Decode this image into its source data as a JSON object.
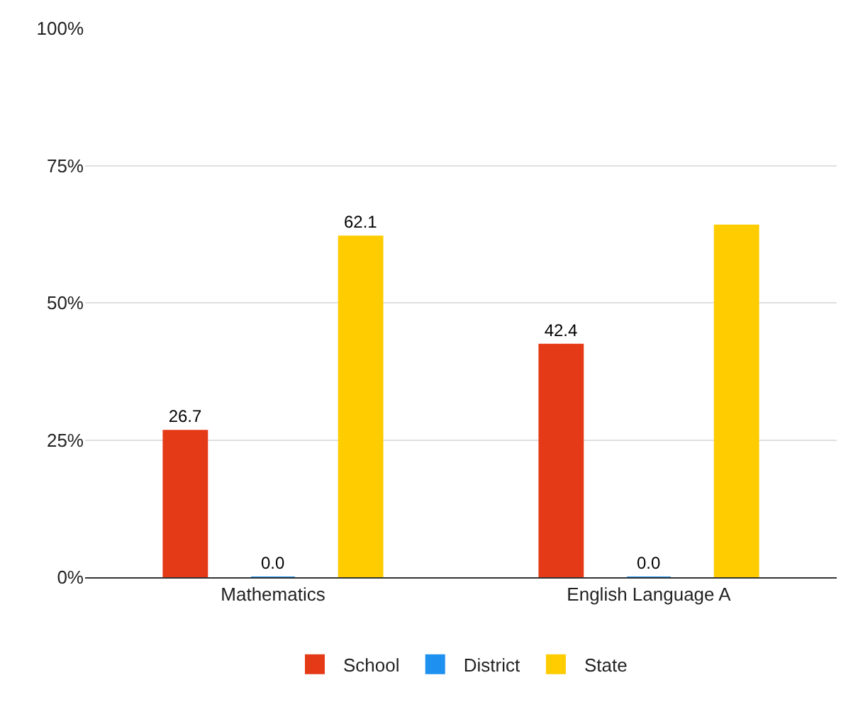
{
  "chart_data": {
    "type": "bar",
    "categories": [
      "Mathematics",
      "English Language A"
    ],
    "series": [
      {
        "name": "School",
        "color": "#e53a17",
        "values": [
          26.7,
          42.4
        ],
        "value_labels": [
          "26.7",
          "42.4"
        ]
      },
      {
        "name": "District",
        "color": "#1e90f0",
        "values": [
          0.0,
          0.0
        ],
        "value_labels": [
          "0.0",
          "0.0"
        ]
      },
      {
        "name": "State",
        "color": "#ffcc00",
        "values": [
          62.1,
          64.1
        ],
        "value_labels": [
          "62.1",
          null
        ]
      }
    ],
    "ylim": [
      0,
      100
    ],
    "yticks": [
      {
        "value": 0,
        "label": "0%"
      },
      {
        "value": 25,
        "label": "25%"
      },
      {
        "value": 50,
        "label": "50%"
      },
      {
        "value": 75,
        "label": "75%"
      },
      {
        "value": 100,
        "label": "100%"
      }
    ],
    "grid": "y",
    "legend": "bottom"
  }
}
